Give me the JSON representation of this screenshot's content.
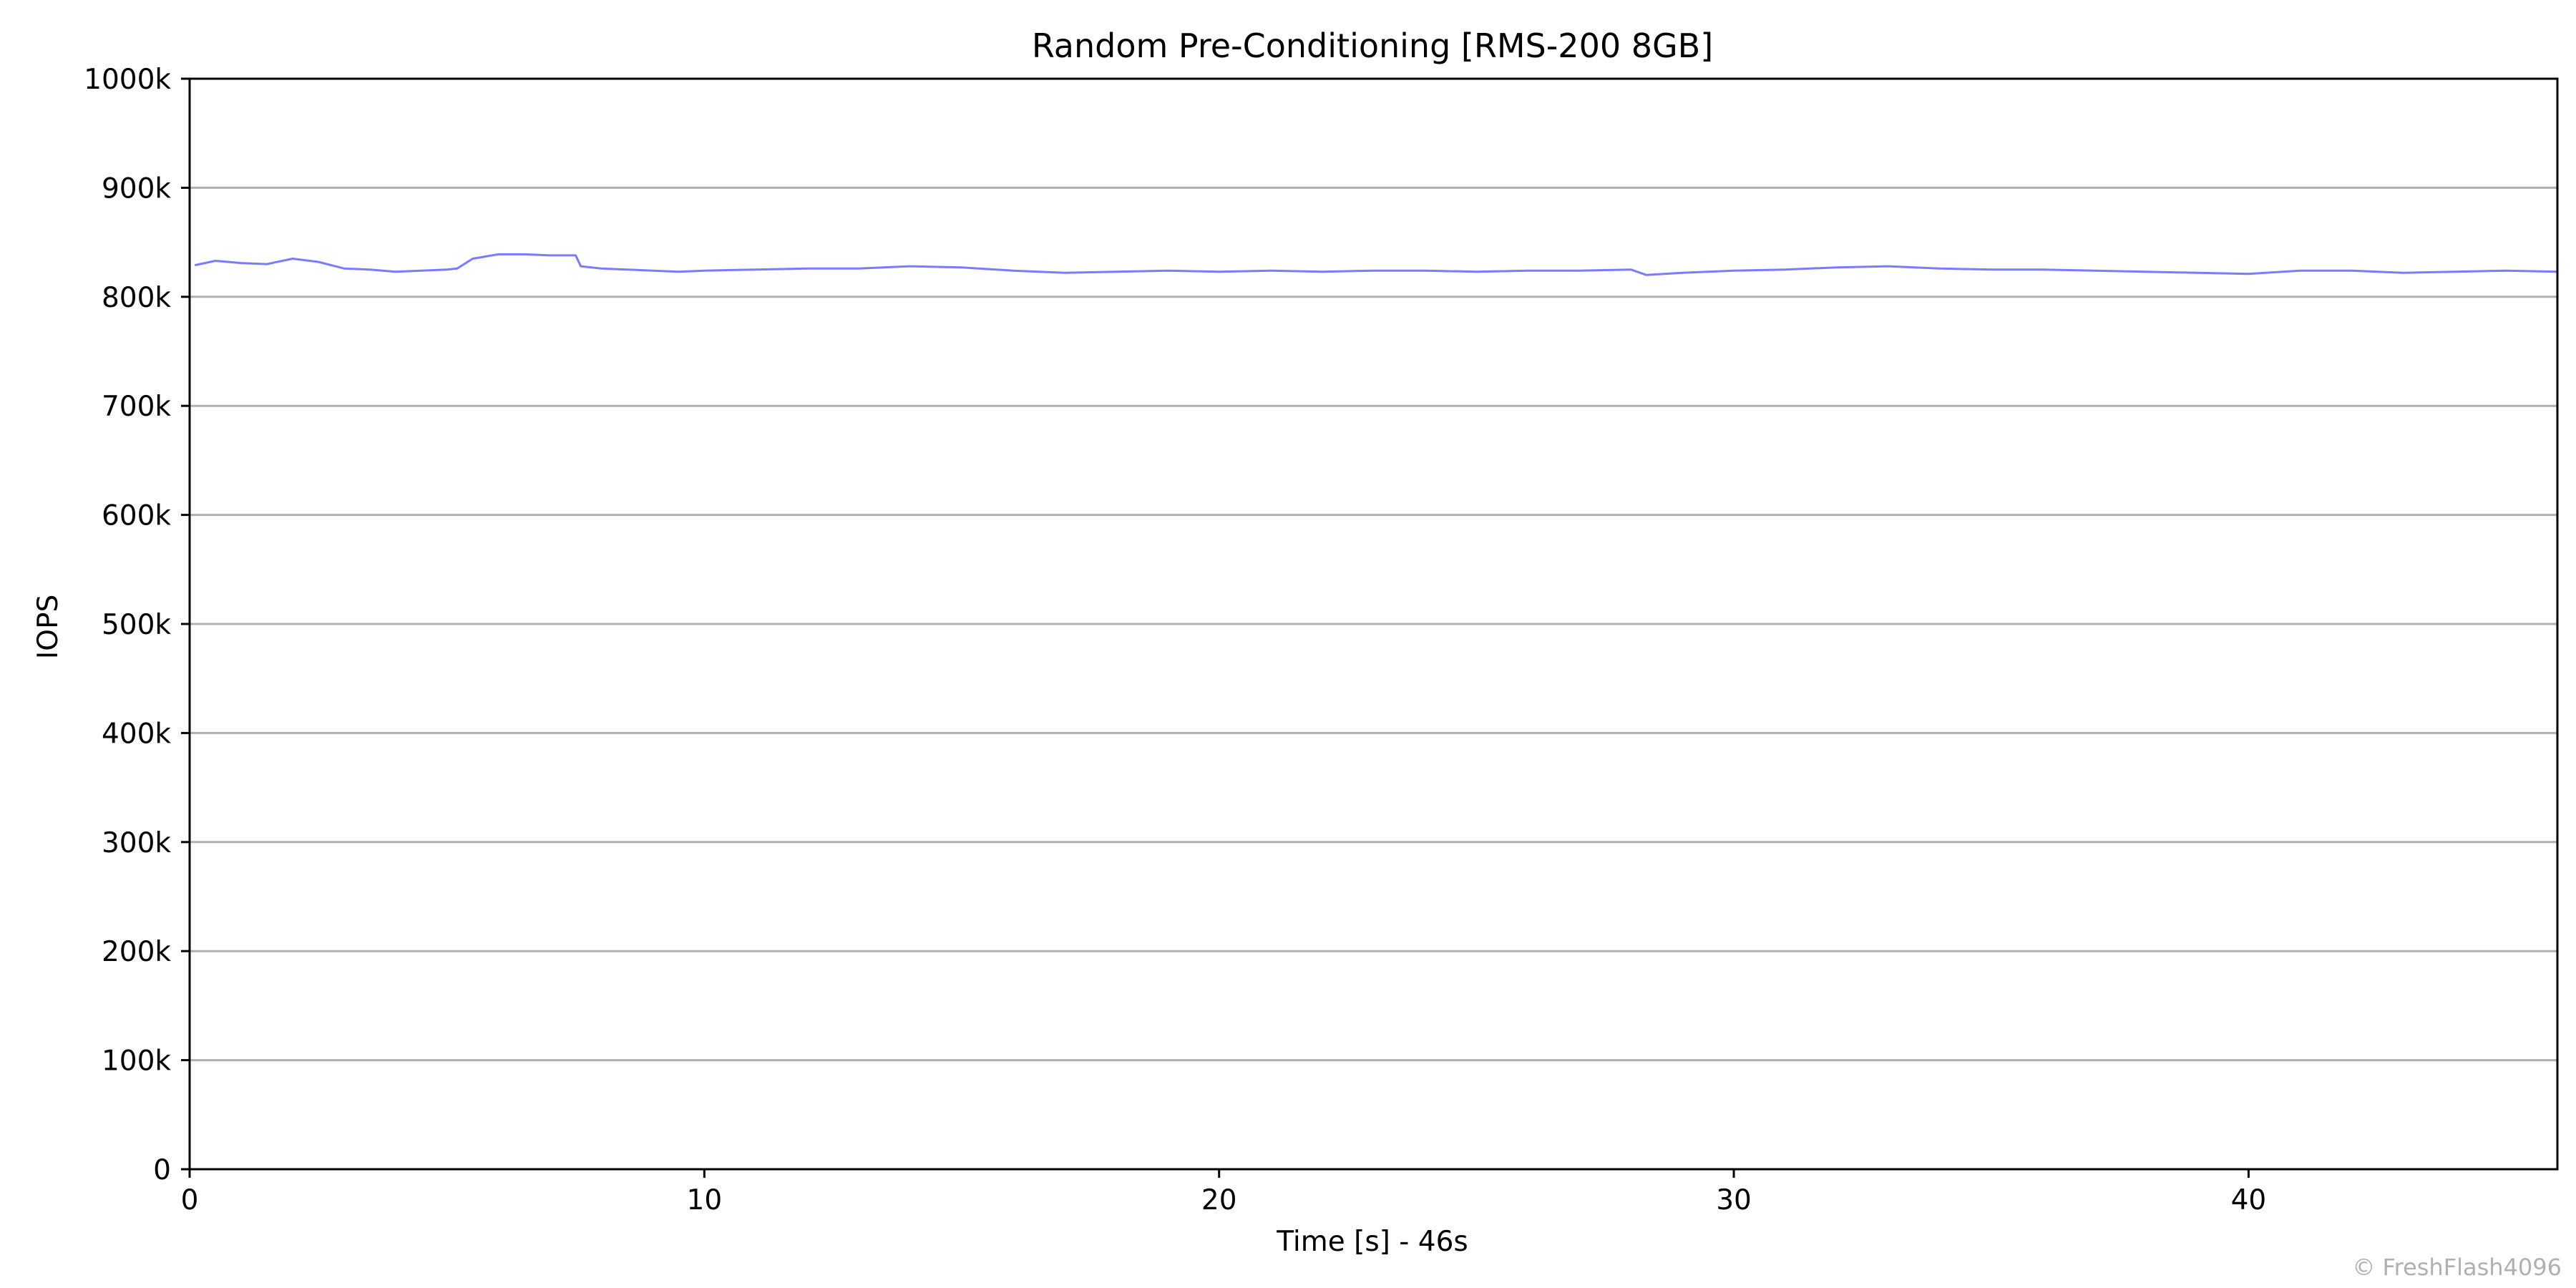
{
  "chart_data": {
    "type": "line",
    "title": "Random Pre-Conditioning [RMS-200 8GB]",
    "xlabel": "Time [s] - 46s",
    "ylabel": "IOPS",
    "xlim": [
      0,
      46
    ],
    "ylim": [
      0,
      1000000
    ],
    "x_ticks": [
      0,
      10,
      20,
      30,
      40
    ],
    "x_tick_labels": [
      "0",
      "10",
      "20",
      "30",
      "40"
    ],
    "y_ticks": [
      0,
      100000,
      200000,
      300000,
      400000,
      500000,
      600000,
      700000,
      800000,
      900000,
      1000000
    ],
    "y_tick_labels": [
      "0",
      "100k",
      "200k",
      "300k",
      "400k",
      "500k",
      "600k",
      "700k",
      "800k",
      "900k",
      "1000k"
    ],
    "grid": "horizontal",
    "series": [
      {
        "color": "#7b7bff",
        "x": [
          0.1,
          0.5,
          1.0,
          1.5,
          2.0,
          2.5,
          3.0,
          3.5,
          4.0,
          4.5,
          5.0,
          5.2,
          5.5,
          6.0,
          6.5,
          7.0,
          7.5,
          7.6,
          8.0,
          8.5,
          9.0,
          9.5,
          10.0,
          11.0,
          12.0,
          13.0,
          14.0,
          15.0,
          16.0,
          17.0,
          18.0,
          19.0,
          20.0,
          21.0,
          22.0,
          23.0,
          24.0,
          25.0,
          26.0,
          27.0,
          28.0,
          28.3,
          29.0,
          30.0,
          31.0,
          32.0,
          33.0,
          34.0,
          35.0,
          36.0,
          37.0,
          38.0,
          39.0,
          40.0,
          41.0,
          42.0,
          43.0,
          44.0,
          45.0,
          46.0
        ],
        "values": [
          829000,
          833000,
          831000,
          830000,
          835000,
          832000,
          826000,
          825000,
          823000,
          824000,
          825000,
          826000,
          835000,
          839000,
          839000,
          838000,
          838000,
          828000,
          826000,
          825000,
          824000,
          823000,
          824000,
          825000,
          826000,
          826000,
          828000,
          827000,
          824000,
          822000,
          823000,
          824000,
          823000,
          824000,
          823000,
          824000,
          824000,
          823000,
          824000,
          824000,
          825000,
          820000,
          822000,
          824000,
          825000,
          827000,
          828000,
          826000,
          825000,
          825000,
          824000,
          823000,
          822000,
          821000,
          824000,
          824000,
          822000,
          823000,
          824000,
          823000
        ]
      }
    ]
  },
  "watermark": "© FreshFlash4096"
}
